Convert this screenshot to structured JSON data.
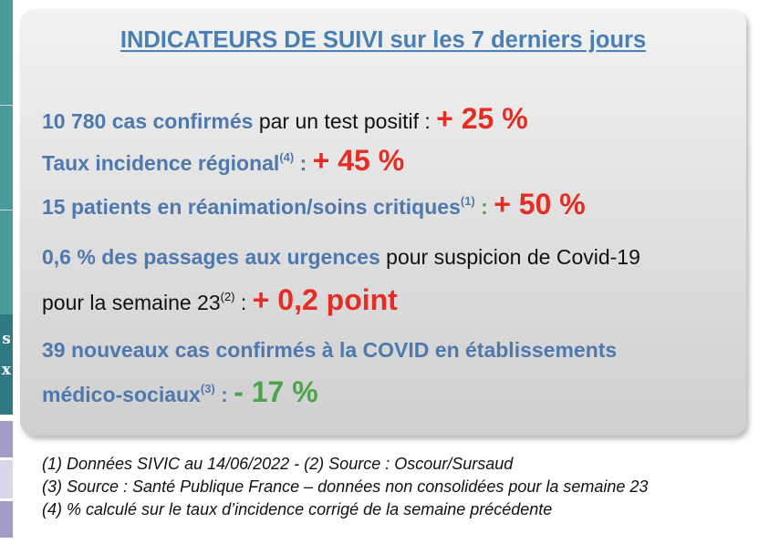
{
  "side_strip": {
    "char1": "s",
    "char2": "x"
  },
  "title": "INDICATEURS DE SUIVI sur les 7 derniers jours",
  "lines": {
    "cas": {
      "highlight": "10 780 cas confirmés",
      "rest": " par un test positif : ",
      "value": "+ 25 %"
    },
    "taux": {
      "highlight": "Taux incidence régional",
      "sup": "(4)",
      "colon": " : ",
      "value": "+ 45 %"
    },
    "rea": {
      "highlight": "15 patients en réanimation/soins critiques",
      "sup": "(1)",
      "colon": " : ",
      "value": "+ 50 %"
    },
    "urg1": {
      "highlight": "0,6 % des passages aux urgences",
      "rest": " pour suspicion de  Covid-19"
    },
    "urg2": {
      "text": "pour la semaine 23",
      "sup": "(2)",
      "colon": " :  ",
      "value": "+ 0,2 point"
    },
    "ems1": {
      "highlight": "39 nouveaux cas confirmés à la COVID en établissements"
    },
    "ems2": {
      "highlight": "médico-sociaux",
      "sup": "(3)",
      "colon": " : ",
      "value": "- 17 %"
    }
  },
  "footnotes": [
    "(1) Données SIVIC au 14/06/2022  - (2) Source : Oscour/Sursaud",
    "(3) Source : Santé Publique France – données non consolidées pour la semaine 23",
    "(4) % calculé sur le taux d’incidence corrigé de la  semaine précédente"
  ],
  "colors": {
    "accent_blue": "#4f79ad",
    "increase_red": "#e42d24",
    "decrease_green": "#4aa54a"
  }
}
